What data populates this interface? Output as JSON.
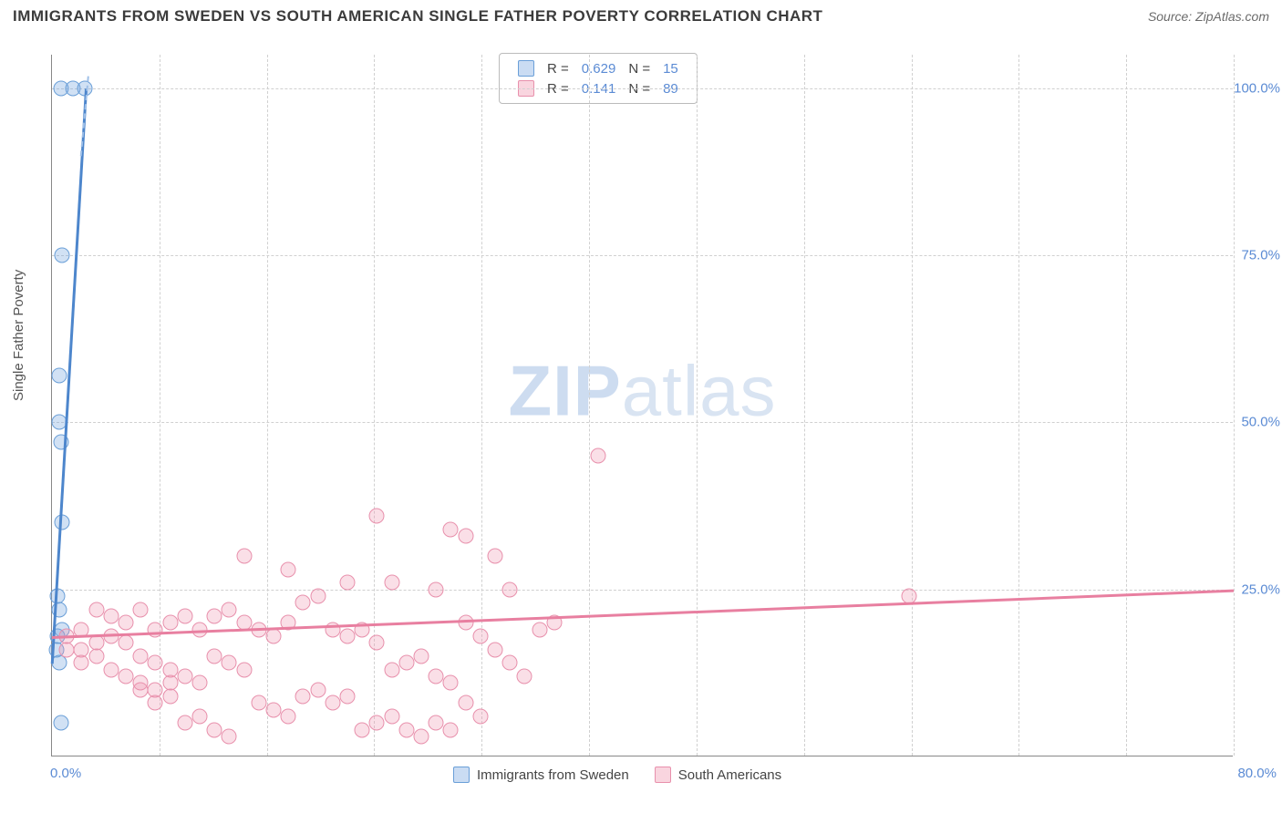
{
  "header": {
    "title": "IMMIGRANTS FROM SWEDEN VS SOUTH AMERICAN SINGLE FATHER POVERTY CORRELATION CHART",
    "source": "Source: ZipAtlas.com"
  },
  "watermark": {
    "bold": "ZIP",
    "rest": "atlas"
  },
  "chart": {
    "type": "scatter",
    "ylabel": "Single Father Poverty",
    "background_color": "#ffffff",
    "grid_color": "#d0d0d0",
    "axis_color": "#888888",
    "tick_color": "#5b8bd4",
    "tick_fontsize": 15,
    "label_fontsize": 15,
    "xlim": [
      0,
      80
    ],
    "ylim": [
      0,
      105
    ],
    "x_ticks": [
      0,
      80
    ],
    "x_tick_labels": [
      "0.0%",
      "80.0%"
    ],
    "y_ticks": [
      25,
      50,
      75,
      100
    ],
    "y_tick_labels": [
      "25.0%",
      "50.0%",
      "75.0%",
      "100.0%"
    ],
    "series": [
      {
        "name": "Immigrants from Sweden",
        "marker_color": "#6a9fd8",
        "marker_fill": "rgba(122,168,224,0.35)",
        "marker_size": 17,
        "trend_color": "#4d86cc",
        "trend_dash_color": "#9fc0e8",
        "R": "0.629",
        "N": "15",
        "points": [
          [
            0.6,
            100
          ],
          [
            1.4,
            100
          ],
          [
            2.2,
            100
          ],
          [
            0.7,
            75
          ],
          [
            0.5,
            57
          ],
          [
            0.5,
            50
          ],
          [
            0.6,
            47
          ],
          [
            0.7,
            35
          ],
          [
            0.4,
            24
          ],
          [
            0.5,
            22
          ],
          [
            0.7,
            19
          ],
          [
            0.4,
            18
          ],
          [
            0.3,
            16
          ],
          [
            0.5,
            14
          ],
          [
            0.6,
            5
          ]
        ],
        "trend": {
          "x1": 0,
          "y1": 14,
          "x2": 2.3,
          "y2": 100
        }
      },
      {
        "name": "South Americans",
        "marker_color": "#e890ac",
        "marker_fill": "rgba(240,150,175,0.3)",
        "marker_size": 17,
        "trend_color": "#e87fa0",
        "R": "0.141",
        "N": "89",
        "points": [
          [
            37,
            45
          ],
          [
            22,
            36
          ],
          [
            27,
            34
          ],
          [
            30,
            30
          ],
          [
            28,
            33
          ],
          [
            13,
            30
          ],
          [
            16,
            28
          ],
          [
            58,
            24
          ],
          [
            20,
            26
          ],
          [
            23,
            26
          ],
          [
            26,
            25
          ],
          [
            31,
            25
          ],
          [
            3,
            22
          ],
          [
            4,
            21
          ],
          [
            5,
            20
          ],
          [
            6,
            22
          ],
          [
            7,
            19
          ],
          [
            8,
            20
          ],
          [
            9,
            21
          ],
          [
            10,
            19
          ],
          [
            11,
            21
          ],
          [
            12,
            22
          ],
          [
            13,
            20
          ],
          [
            14,
            19
          ],
          [
            15,
            18
          ],
          [
            16,
            20
          ],
          [
            17,
            23
          ],
          [
            18,
            24
          ],
          [
            19,
            19
          ],
          [
            20,
            18
          ],
          [
            21,
            19
          ],
          [
            22,
            17
          ],
          [
            23,
            13
          ],
          [
            24,
            14
          ],
          [
            25,
            15
          ],
          [
            26,
            12
          ],
          [
            27,
            11
          ],
          [
            28,
            20
          ],
          [
            29,
            18
          ],
          [
            30,
            16
          ],
          [
            31,
            14
          ],
          [
            32,
            12
          ],
          [
            33,
            19
          ],
          [
            34,
            20
          ],
          [
            4,
            18
          ],
          [
            5,
            17
          ],
          [
            6,
            15
          ],
          [
            7,
            14
          ],
          [
            8,
            13
          ],
          [
            9,
            12
          ],
          [
            10,
            11
          ],
          [
            11,
            15
          ],
          [
            12,
            14
          ],
          [
            13,
            13
          ],
          [
            14,
            8
          ],
          [
            15,
            7
          ],
          [
            16,
            6
          ],
          [
            17,
            9
          ],
          [
            18,
            10
          ],
          [
            19,
            8
          ],
          [
            20,
            9
          ],
          [
            21,
            4
          ],
          [
            22,
            5
          ],
          [
            23,
            6
          ],
          [
            24,
            4
          ],
          [
            25,
            3
          ],
          [
            26,
            5
          ],
          [
            27,
            4
          ],
          [
            9,
            5
          ],
          [
            10,
            6
          ],
          [
            11,
            4
          ],
          [
            12,
            3
          ],
          [
            6,
            10
          ],
          [
            7,
            8
          ],
          [
            8,
            9
          ],
          [
            2,
            16
          ],
          [
            3,
            17
          ],
          [
            2,
            19
          ],
          [
            1,
            18
          ],
          [
            1,
            16
          ],
          [
            2,
            14
          ],
          [
            3,
            15
          ],
          [
            4,
            13
          ],
          [
            5,
            12
          ],
          [
            6,
            11
          ],
          [
            7,
            10
          ],
          [
            8,
            11
          ],
          [
            28,
            8
          ],
          [
            29,
            6
          ]
        ],
        "trend": {
          "x1": 0,
          "y1": 18,
          "x2": 80,
          "y2": 25
        }
      }
    ],
    "legend_top": {
      "rows": [
        {
          "swatch": "blue",
          "R_label": "R =",
          "R": "0.629",
          "N_label": "N =",
          "N": "15"
        },
        {
          "swatch": "pink",
          "R_label": "R =",
          "R": "0.141",
          "N_label": "N =",
          "N": "89"
        }
      ]
    },
    "legend_bottom": {
      "items": [
        {
          "swatch": "blue",
          "label": "Immigrants from Sweden"
        },
        {
          "swatch": "pink",
          "label": "South Americans"
        }
      ]
    }
  }
}
